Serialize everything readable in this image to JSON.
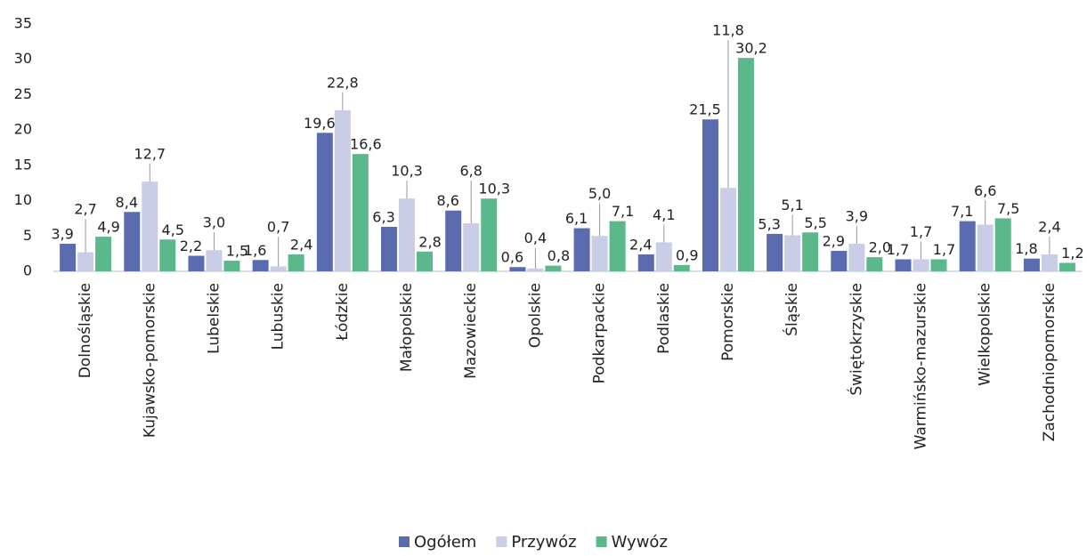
{
  "chart_data": {
    "type": "bar",
    "categories": [
      "Dolnośląskie",
      "Kujawsko-pomorskie",
      "Lubelskie",
      "Lubuskie",
      "Łódzkie",
      "Małopolskie",
      "Mazowieckie",
      "Opolskie",
      "Podkarpackie",
      "Podlaskie",
      "Pomorskie",
      "Śląskie",
      "Świętokrzyskie",
      "Warmińsko-mazurskie",
      "Wielkopolskie",
      "Zachodniopomorskie"
    ],
    "series": [
      {
        "name": "Ogółem",
        "color": "#5b6bb0",
        "values": [
          3.9,
          8.4,
          2.2,
          1.6,
          19.6,
          6.3,
          8.6,
          0.6,
          6.1,
          2.4,
          21.5,
          5.3,
          2.9,
          1.7,
          7.1,
          1.8
        ],
        "value_labels": [
          "3,9",
          "8,4",
          "2,2",
          "1,6",
          "19,6",
          "6,3",
          "8,6",
          "0,6",
          "6,1",
          "2,4",
          "21,5",
          "5,3",
          "2,9",
          "1,7",
          "7,1",
          "1,8"
        ]
      },
      {
        "name": "Przywóz",
        "color": "#c9cde6",
        "values": [
          2.7,
          12.7,
          3.0,
          0.7,
          22.8,
          10.3,
          6.8,
          0.4,
          5.0,
          4.1,
          11.8,
          5.1,
          3.9,
          1.7,
          6.6,
          2.4
        ],
        "value_labels": [
          "2,7",
          "12,7",
          "3,0",
          "0,7",
          "22,8",
          "10,3",
          "6,8",
          "0,4",
          "5,0",
          "4,1",
          "11,8",
          "5,1",
          "3,9",
          "1,7",
          "6,6",
          "2,4"
        ]
      },
      {
        "name": "Wywóz",
        "color": "#5ab88a",
        "values": [
          4.9,
          4.5,
          1.5,
          2.4,
          16.6,
          2.8,
          10.3,
          0.8,
          7.1,
          0.9,
          30.2,
          5.5,
          2.0,
          1.7,
          7.5,
          1.2
        ],
        "value_labels": [
          "4,9",
          "4,5",
          "1,5",
          "2,4",
          "16,6",
          "2,8",
          "10,3",
          "0,8",
          "7,1",
          "0,9",
          "30,2",
          "5,5",
          "2,0",
          "1,7",
          "7,5",
          "1,2"
        ]
      }
    ],
    "ylim": [
      0,
      35
    ],
    "yticks": [
      0,
      5,
      10,
      15,
      20,
      25,
      30,
      35
    ],
    "legend": "bottom"
  }
}
